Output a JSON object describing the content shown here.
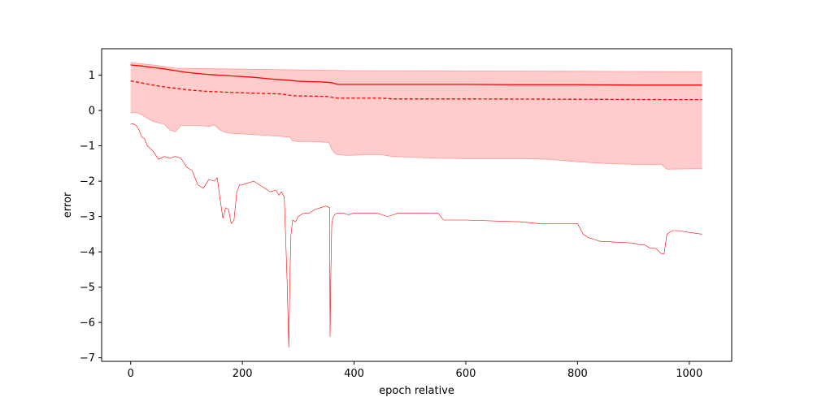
{
  "chart_data": {
    "type": "line",
    "title": "",
    "xlabel": "epoch relative",
    "ylabel": "error",
    "xlim": [
      -52,
      1076
    ],
    "ylim": [
      -7.1,
      1.75
    ],
    "xticks": [
      0,
      200,
      400,
      600,
      800,
      1000
    ],
    "yticks": [
      -7,
      -6,
      -5,
      -4,
      -3,
      -2,
      -1,
      0,
      1
    ],
    "grid": false,
    "legend": "none",
    "colors": {
      "line": "#ff0000",
      "band_fill": "#ffcccc",
      "band_edge": "#ff9999"
    },
    "series": [
      {
        "style": "solid",
        "x": [
          0,
          20,
          40,
          60,
          80,
          100,
          120,
          140,
          160,
          180,
          200,
          220,
          240,
          260,
          280,
          300,
          320,
          340,
          350,
          360,
          370,
          400,
          500,
          600,
          700,
          800,
          900,
          1000,
          1023
        ],
        "y": [
          1.29,
          1.26,
          1.22,
          1.18,
          1.13,
          1.08,
          1.05,
          1.02,
          1.0,
          0.98,
          0.96,
          0.94,
          0.91,
          0.88,
          0.86,
          0.83,
          0.82,
          0.81,
          0.8,
          0.79,
          0.74,
          0.74,
          0.74,
          0.74,
          0.73,
          0.73,
          0.72,
          0.72,
          0.72
        ]
      },
      {
        "style": "dashed",
        "x": [
          0,
          20,
          40,
          60,
          80,
          100,
          130,
          170,
          220,
          270,
          290,
          350,
          370,
          450,
          470,
          600,
          800,
          950,
          1023
        ],
        "y": [
          0.84,
          0.78,
          0.72,
          0.67,
          0.63,
          0.59,
          0.55,
          0.52,
          0.49,
          0.47,
          0.42,
          0.4,
          0.35,
          0.35,
          0.33,
          0.33,
          0.32,
          0.31,
          0.31
        ]
      },
      {
        "style": "band-upper",
        "x": [
          0,
          40,
          80,
          120,
          200,
          300,
          400,
          600,
          800,
          1023
        ],
        "y": [
          1.36,
          1.29,
          1.2,
          1.19,
          1.17,
          1.15,
          1.13,
          1.12,
          1.11,
          1.1
        ]
      },
      {
        "style": "band-lower",
        "x": [
          0,
          10,
          20,
          30,
          40,
          50,
          60,
          70,
          80,
          90,
          120,
          140,
          150,
          160,
          170,
          180,
          200,
          220,
          240,
          260,
          285,
          290,
          300,
          310,
          320,
          340,
          355,
          360,
          365,
          370,
          390,
          420,
          450,
          460,
          470,
          500,
          550,
          600,
          700,
          750,
          800,
          850,
          900,
          950,
          960,
          1000,
          1023
        ],
        "y": [
          -0.07,
          -0.05,
          -0.12,
          -0.22,
          -0.3,
          -0.35,
          -0.38,
          -0.55,
          -0.6,
          -0.42,
          -0.42,
          -0.45,
          -0.41,
          -0.55,
          -0.62,
          -0.65,
          -0.66,
          -0.68,
          -0.7,
          -0.72,
          -0.75,
          -0.86,
          -0.88,
          -0.88,
          -0.88,
          -0.89,
          -0.9,
          -1.1,
          -1.2,
          -1.25,
          -1.27,
          -1.25,
          -1.25,
          -1.28,
          -1.3,
          -1.32,
          -1.35,
          -1.36,
          -1.36,
          -1.38,
          -1.45,
          -1.5,
          -1.52,
          -1.52,
          -1.66,
          -1.65,
          -1.65
        ]
      },
      {
        "style": "thin",
        "x": [
          0,
          5,
          10,
          15,
          20,
          25,
          30,
          40,
          50,
          60,
          70,
          80,
          90,
          100,
          110,
          120,
          130,
          140,
          150,
          155,
          160,
          165,
          170,
          175,
          180,
          185,
          190,
          195,
          200,
          210,
          220,
          230,
          240,
          250,
          260,
          265,
          270,
          275,
          280,
          283,
          285,
          287,
          290,
          295,
          300,
          310,
          320,
          330,
          340,
          350,
          356,
          357,
          358,
          360,
          362,
          365,
          370,
          380,
          390,
          400,
          420,
          440,
          450,
          460,
          470,
          480,
          500,
          550,
          560,
          600,
          700,
          730,
          800,
          810,
          820,
          840,
          900,
          910,
          920,
          930,
          940,
          950,
          955,
          960,
          970,
          980,
          1000,
          1023
        ],
        "y": [
          -0.38,
          -0.38,
          -0.42,
          -0.55,
          -0.75,
          -0.8,
          -1.0,
          -1.15,
          -1.38,
          -1.3,
          -1.35,
          -1.3,
          -1.35,
          -1.6,
          -1.7,
          -2.1,
          -2.2,
          -1.95,
          -2.0,
          -1.9,
          -2.5,
          -3.05,
          -2.75,
          -2.8,
          -3.2,
          -3.1,
          -2.3,
          -2.1,
          -2.1,
          -2.05,
          -2.0,
          -2.1,
          -2.2,
          -2.3,
          -2.25,
          -2.4,
          -2.3,
          -2.45,
          -4.8,
          -6.7,
          -4.8,
          -3.5,
          -3.1,
          -3.15,
          -3.0,
          -2.9,
          -2.9,
          -2.8,
          -2.75,
          -2.7,
          -2.75,
          -6.4,
          -4.9,
          -3.2,
          -3.05,
          -2.95,
          -2.9,
          -2.9,
          -2.95,
          -2.9,
          -2.9,
          -2.9,
          -2.95,
          -3.0,
          -2.95,
          -2.9,
          -2.9,
          -2.9,
          -3.1,
          -3.1,
          -3.15,
          -3.2,
          -3.2,
          -3.5,
          -3.6,
          -3.7,
          -3.75,
          -3.8,
          -3.8,
          -3.9,
          -3.9,
          -4.05,
          -4.05,
          -3.5,
          -3.4,
          -3.4,
          -3.45,
          -3.5
        ]
      }
    ]
  }
}
